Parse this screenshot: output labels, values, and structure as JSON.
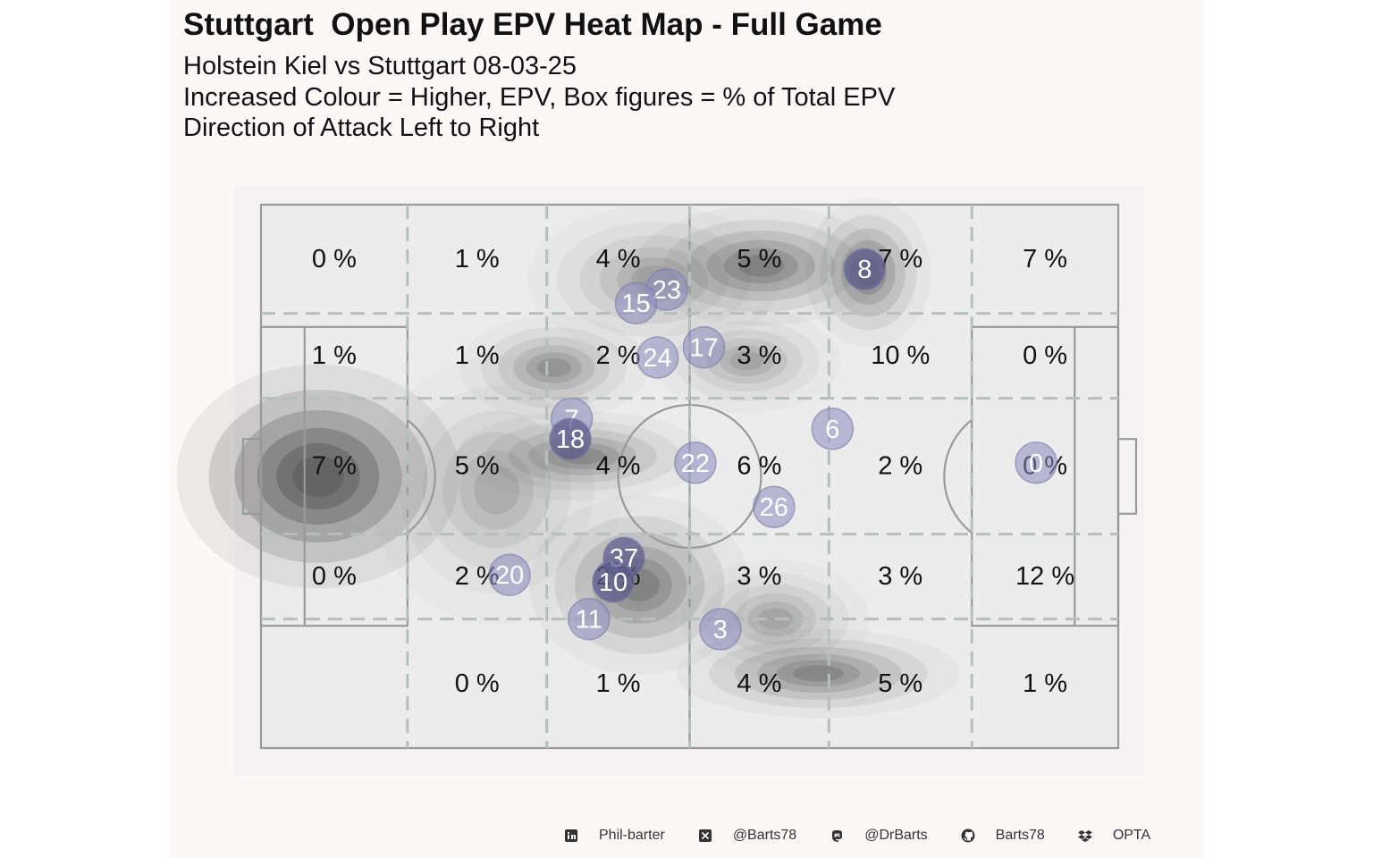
{
  "title": "Stuttgart  Open Play EPV Heat Map - Full Game",
  "subtitle_lines": [
    "Holstein Kiel vs Stuttgart 08-03-25",
    "Increased Colour = Higher, EPV, Box figures = % of Total EPV",
    "Direction of Attack Left to Right"
  ],
  "colors": {
    "panel_background": "#fdf8f8",
    "pitch_fill": "#ececec",
    "pitch_lines": "#999999",
    "zone_lines": "#b5c0bd",
    "density": "#5a5a5a",
    "player_fill": "#8c8cc0",
    "player_text": "#ffffff"
  },
  "footer": {
    "items": [
      {
        "icon": "linkedin-icon",
        "label": "Phil-barter"
      },
      {
        "icon": "x-icon",
        "label": "@Barts78"
      },
      {
        "icon": "mastodon-icon",
        "label": "@DrBarts"
      },
      {
        "icon": "github-icon",
        "label": "Barts78"
      },
      {
        "icon": "dropbox-icon",
        "label": "OPTA"
      }
    ]
  },
  "chart_data": {
    "type": "heatmap",
    "title": "Stuttgart  Open Play EPV Heat Map - Full Game",
    "pitch": {
      "length": 120,
      "width": 80,
      "zone_x_edges": [
        0,
        20.5,
        40,
        60,
        79.5,
        99.5,
        120
      ],
      "zone_y_edges": [
        0,
        16,
        28.5,
        48.5,
        61,
        80
      ]
    },
    "zone_percentages": [
      [
        "0 %",
        "1 %",
        "4 %",
        "5 %",
        "7 %",
        "7 %"
      ],
      [
        "1 %",
        "1 %",
        "2 %",
        "3 %",
        "10 %",
        "0 %"
      ],
      [
        "7 %",
        "5 %",
        "4 %",
        "6 %",
        "2 %",
        "0 %"
      ],
      [
        "0 %",
        "2 %",
        "2 %",
        "3 %",
        "3 %",
        "12 %"
      ],
      [
        "",
        "0 %",
        "1 %",
        "4 %",
        "5 %",
        "1 %"
      ]
    ],
    "density_hotspots": [
      {
        "x": 8,
        "y": 40,
        "spread_x": 9,
        "spread_y": 7.5,
        "intensity": 1.0
      },
      {
        "x": 70,
        "y": 9,
        "spread_x": 8,
        "spread_y": 4,
        "intensity": 0.55
      },
      {
        "x": 85,
        "y": 10,
        "spread_x": 4,
        "spread_y": 5,
        "intensity": 0.55
      },
      {
        "x": 41,
        "y": 24,
        "spread_x": 6,
        "spread_y": 3.5,
        "intensity": 0.4
      },
      {
        "x": 45,
        "y": 37,
        "spread_x": 8,
        "spread_y": 3,
        "intensity": 0.45
      },
      {
        "x": 53,
        "y": 56,
        "spread_x": 7,
        "spread_y": 6,
        "intensity": 0.55
      },
      {
        "x": 78,
        "y": 69,
        "spread_x": 9,
        "spread_y": 3,
        "intensity": 0.5
      },
      {
        "x": 72,
        "y": 61,
        "spread_x": 6,
        "spread_y": 4,
        "intensity": 0.3
      },
      {
        "x": 68,
        "y": 23,
        "spread_x": 6,
        "spread_y": 3.5,
        "intensity": 0.3
      },
      {
        "x": 33,
        "y": 42,
        "spread_x": 8,
        "spread_y": 9,
        "intensity": 0.25
      },
      {
        "x": 55,
        "y": 11,
        "spread_x": 8,
        "spread_y": 5,
        "intensity": 0.3
      }
    ],
    "players": [
      {
        "number": "8",
        "x": 84.5,
        "y": 9.5,
        "dark": true
      },
      {
        "number": "23",
        "x": 56.8,
        "y": 12.5,
        "dark": false
      },
      {
        "number": "15",
        "x": 52.5,
        "y": 14.5,
        "dark": false
      },
      {
        "number": "17",
        "x": 62,
        "y": 21,
        "dark": false
      },
      {
        "number": "24",
        "x": 55.5,
        "y": 22.5,
        "dark": false
      },
      {
        "number": "7",
        "x": 43.5,
        "y": 31.5,
        "dark": false
      },
      {
        "number": "18",
        "x": 43.3,
        "y": 34.5,
        "dark": true
      },
      {
        "number": "6",
        "x": 80,
        "y": 33,
        "dark": false
      },
      {
        "number": "22",
        "x": 60.8,
        "y": 38,
        "dark": false
      },
      {
        "number": "0",
        "x": 108.5,
        "y": 38,
        "dark": false
      },
      {
        "number": "26",
        "x": 71.8,
        "y": 44.5,
        "dark": false
      },
      {
        "number": "37",
        "x": 50.8,
        "y": 52,
        "dark": true
      },
      {
        "number": "10",
        "x": 49.3,
        "y": 55.5,
        "dark": true
      },
      {
        "number": "20",
        "x": 34.8,
        "y": 54.5,
        "dark": false
      },
      {
        "number": "11",
        "x": 45.9,
        "y": 61,
        "dark": false
      },
      {
        "number": "3",
        "x": 64.3,
        "y": 62.5,
        "dark": false
      }
    ]
  }
}
